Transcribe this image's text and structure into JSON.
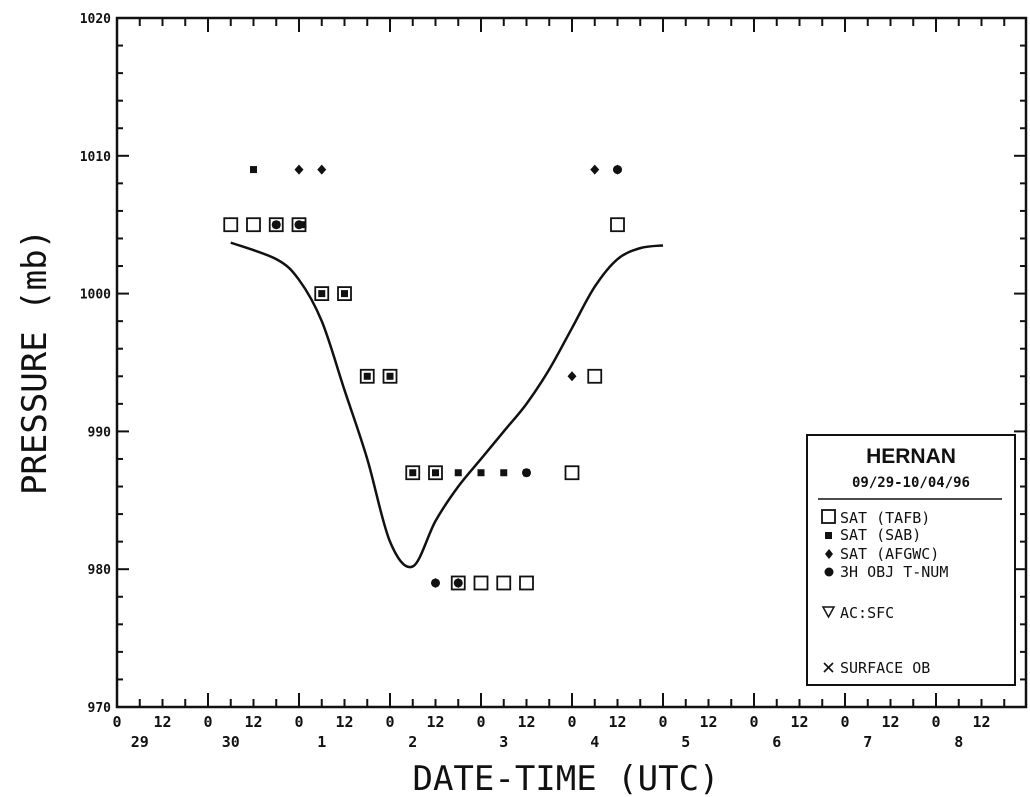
{
  "chart_data": {
    "type": "scatter",
    "title": "",
    "xlabel": "DATE-TIME (UTC)",
    "ylabel": "PRESSURE (mb)",
    "ylim": [
      970,
      1020
    ],
    "yticks": [
      970,
      980,
      990,
      1000,
      1010,
      1020
    ],
    "ytick_labels": [
      "970",
      "980",
      "990",
      "1000",
      "1010",
      "1020"
    ],
    "xlim_hours": [
      0,
      240
    ],
    "x_hour_labels": [
      "0",
      "12",
      "0",
      "12",
      "0",
      "12",
      "0",
      "12",
      "0",
      "12",
      "0",
      "12",
      "0",
      "12",
      "0",
      "12",
      "0",
      "12",
      "0",
      "12"
    ],
    "x_day_labels": [
      "29",
      "30",
      "1",
      "2",
      "3",
      "4",
      "5",
      "6",
      "7",
      "8"
    ],
    "legend": {
      "title": "HERNAN",
      "date_range": "09/29-10/04/96",
      "items": [
        {
          "marker": "open-square",
          "label": "SAT (TAFB)"
        },
        {
          "marker": "small-square",
          "label": "SAT (SAB)"
        },
        {
          "marker": "diamond",
          "label": "SAT (AFGWC)"
        },
        {
          "marker": "octagon",
          "label": "3H OBJ T-NUM"
        },
        {
          "marker": "triangle-down",
          "label": "AC:SFC"
        },
        {
          "marker": "x",
          "label": "SURFACE OB"
        }
      ]
    },
    "best_track": {
      "name": "",
      "x": [
        30,
        42,
        48,
        54,
        60,
        66,
        72,
        78,
        84,
        90,
        96,
        102,
        108,
        114,
        120,
        126,
        132,
        138,
        144
      ],
      "y": [
        1003.7,
        1002.5,
        1001,
        998,
        993,
        988,
        982,
        980.2,
        983.5,
        986,
        988,
        990,
        992,
        994.5,
        997.5,
        1000.5,
        1002.5,
        1003.3,
        1003.5
      ]
    },
    "series": [
      {
        "marker": "open-square",
        "x": [
          30,
          36,
          42,
          48,
          54,
          60,
          66,
          72,
          78,
          84,
          90,
          96,
          102,
          108,
          120,
          126,
          132
        ],
        "y": [
          1005,
          1005,
          1005,
          1005,
          1000,
          1000,
          994,
          994,
          987,
          987,
          979,
          979,
          979,
          979,
          987,
          994,
          1005
        ]
      },
      {
        "marker": "small-square",
        "x": [
          36,
          42,
          49,
          54,
          60,
          66,
          72,
          78,
          84,
          90,
          96,
          102,
          108
        ],
        "y": [
          1009,
          1005,
          1005,
          1000,
          1000,
          994,
          994,
          987,
          987,
          987,
          987,
          987,
          987
        ]
      },
      {
        "marker": "diamond",
        "x": [
          48,
          54,
          84,
          90,
          120,
          126,
          132
        ],
        "y": [
          1009,
          1009,
          979,
          979,
          994,
          1009,
          1009
        ]
      },
      {
        "marker": "octagon",
        "x": [
          42,
          48,
          84,
          90,
          108,
          132
        ],
        "y": [
          1005,
          1005,
          979,
          979,
          987,
          1009
        ]
      }
    ]
  }
}
